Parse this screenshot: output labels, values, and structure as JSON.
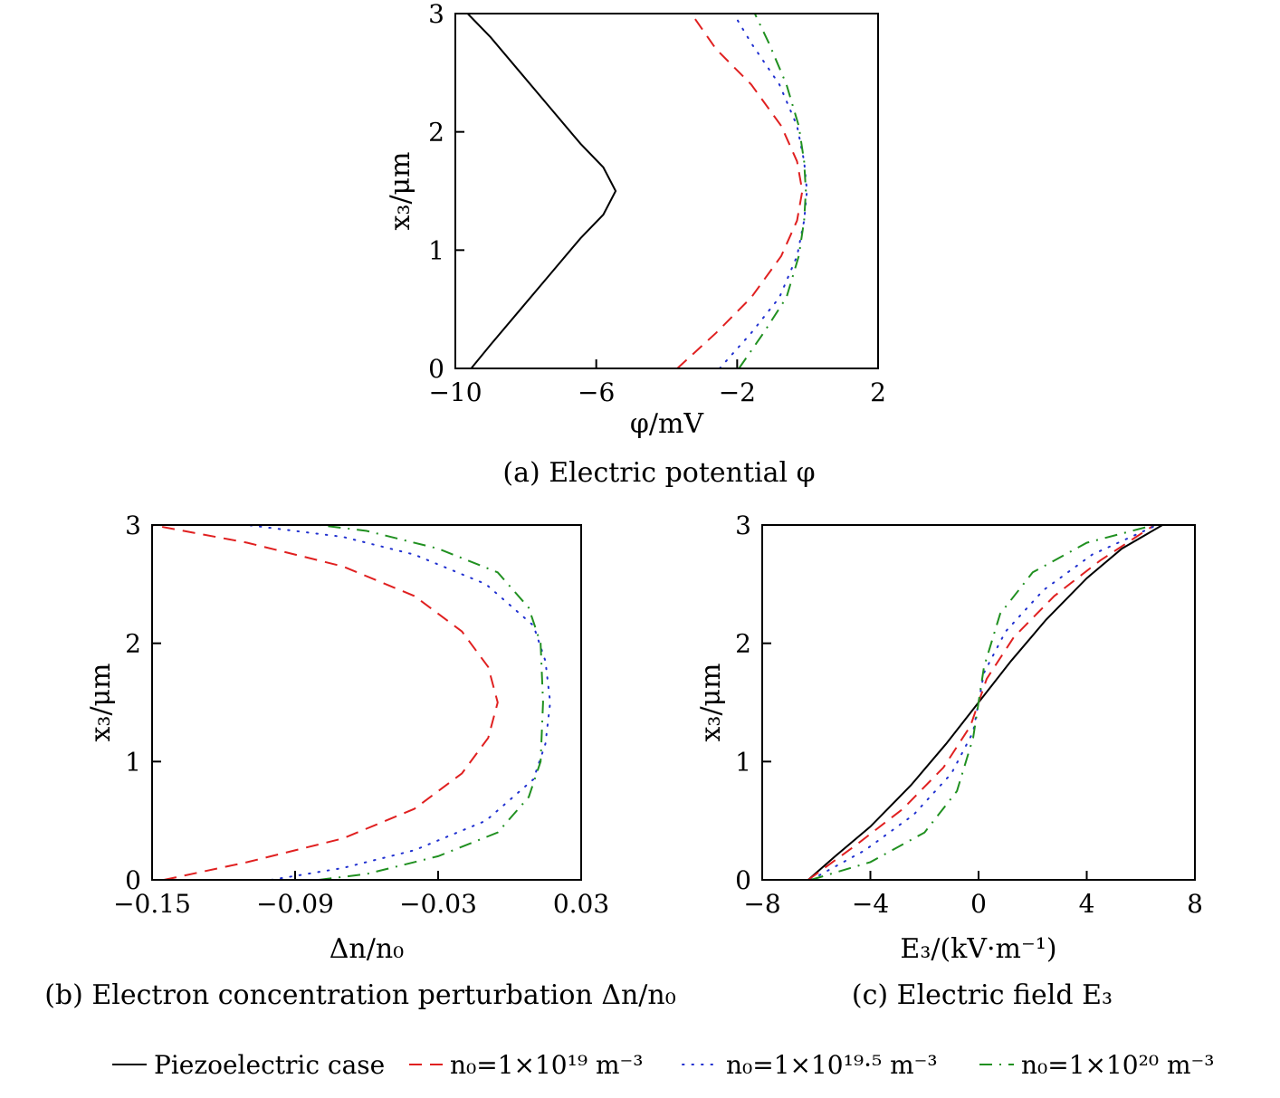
{
  "chart_data": [
    {
      "type": "line",
      "caption": "(a) Electric potential φ",
      "xlabel": "φ/mV",
      "ylabel": "x₃/μm",
      "xlim": [
        -10,
        2
      ],
      "ylim": [
        0,
        3
      ],
      "xticks": [
        -10,
        -6,
        -2,
        2
      ],
      "xtick_labels": [
        "−10",
        "−6",
        "−2",
        "2"
      ],
      "yticks": [
        0,
        1,
        2,
        3
      ],
      "ytick_labels": [
        "0",
        "1",
        "2",
        "3"
      ],
      "series": [
        {
          "name": "Piezoelectric case",
          "color": "#000000",
          "dash": "solid",
          "points": [
            [
              -9.55,
              0
            ],
            [
              -9.0,
              0.2
            ],
            [
              -8.15,
              0.5
            ],
            [
              -7.3,
              0.8
            ],
            [
              -6.45,
              1.1
            ],
            [
              -5.8,
              1.3
            ],
            [
              -5.45,
              1.5
            ],
            [
              -5.8,
              1.7
            ],
            [
              -6.45,
              1.9
            ],
            [
              -7.3,
              2.2
            ],
            [
              -8.15,
              2.5
            ],
            [
              -9.0,
              2.8
            ],
            [
              -9.65,
              3
            ]
          ]
        },
        {
          "name": "n0=1×10^19 m^-3",
          "color": "#e02020",
          "dash": "dashed",
          "points": [
            [
              -3.7,
              0
            ],
            [
              -2.6,
              0.3
            ],
            [
              -1.6,
              0.6
            ],
            [
              -0.75,
              0.95
            ],
            [
              -0.3,
              1.25
            ],
            [
              -0.15,
              1.5
            ],
            [
              -0.3,
              1.75
            ],
            [
              -0.75,
              2.05
            ],
            [
              -1.6,
              2.4
            ],
            [
              -2.6,
              2.7
            ],
            [
              -3.3,
              3
            ]
          ]
        },
        {
          "name": "n0=1×10^19.5 m^-3",
          "color": "#2030d0",
          "dash": "dotted",
          "points": [
            [
              -2.5,
              0
            ],
            [
              -1.6,
              0.3
            ],
            [
              -0.8,
              0.6
            ],
            [
              -0.3,
              0.95
            ],
            [
              -0.1,
              1.25
            ],
            [
              -0.02,
              1.5
            ],
            [
              -0.1,
              1.75
            ],
            [
              -0.3,
              2.05
            ],
            [
              -0.8,
              2.4
            ],
            [
              -1.6,
              2.75
            ],
            [
              -2.1,
              3
            ]
          ]
        },
        {
          "name": "n0=1×10^20 m^-3",
          "color": "#209020",
          "dash": "dashdot",
          "points": [
            [
              -1.95,
              0
            ],
            [
              -1.25,
              0.3
            ],
            [
              -0.6,
              0.6
            ],
            [
              -0.25,
              0.95
            ],
            [
              -0.1,
              1.25
            ],
            [
              -0.05,
              1.5
            ],
            [
              -0.1,
              1.75
            ],
            [
              -0.25,
              2.05
            ],
            [
              -0.6,
              2.4
            ],
            [
              -1.1,
              2.75
            ],
            [
              -1.5,
              3
            ]
          ]
        }
      ]
    },
    {
      "type": "line",
      "caption": "(b) Electron concentration perturbation Δn/n₀",
      "xlabel": "Δn/n₀",
      "ylabel": "x₃/μm",
      "xlim": [
        -0.15,
        0.03
      ],
      "ylim": [
        0,
        3
      ],
      "xticks": [
        -0.15,
        -0.09,
        -0.03,
        0.03
      ],
      "xtick_labels": [
        "−0.15",
        "−0.09",
        "−0.03",
        "0.03"
      ],
      "yticks": [
        0,
        1,
        2,
        3
      ],
      "ytick_labels": [
        "0",
        "1",
        "2",
        "3"
      ],
      "series": [
        {
          "name": "n0=1×10^19 m^-3",
          "color": "#e02020",
          "dash": "dashed",
          "points": [
            [
              -0.145,
              0
            ],
            [
              -0.11,
              0.15
            ],
            [
              -0.07,
              0.35
            ],
            [
              -0.04,
              0.6
            ],
            [
              -0.02,
              0.9
            ],
            [
              -0.009,
              1.2
            ],
            [
              -0.005,
              1.5
            ],
            [
              -0.009,
              1.8
            ],
            [
              -0.02,
              2.1
            ],
            [
              -0.04,
              2.4
            ],
            [
              -0.07,
              2.65
            ],
            [
              -0.11,
              2.85
            ],
            [
              -0.15,
              3
            ]
          ]
        },
        {
          "name": "n0=1×10^19.5 m^-3",
          "color": "#2030d0",
          "dash": "dotted",
          "points": [
            [
              -0.1,
              0
            ],
            [
              -0.07,
              0.1
            ],
            [
              -0.04,
              0.25
            ],
            [
              -0.01,
              0.5
            ],
            [
              0.01,
              0.85
            ],
            [
              0.015,
              1.15
            ],
            [
              0.017,
              1.5
            ],
            [
              0.015,
              1.85
            ],
            [
              0.01,
              2.15
            ],
            [
              -0.01,
              2.5
            ],
            [
              -0.04,
              2.75
            ],
            [
              -0.07,
              2.9
            ],
            [
              -0.11,
              3
            ]
          ]
        },
        {
          "name": "n0=1×10^20 m^-3",
          "color": "#209020",
          "dash": "dashdot",
          "points": [
            [
              -0.08,
              0
            ],
            [
              -0.06,
              0.05
            ],
            [
              -0.03,
              0.2
            ],
            [
              -0.005,
              0.4
            ],
            [
              0.008,
              0.7
            ],
            [
              0.013,
              1.0
            ],
            [
              0.014,
              1.5
            ],
            [
              0.013,
              2.0
            ],
            [
              0.008,
              2.3
            ],
            [
              -0.005,
              2.6
            ],
            [
              -0.03,
              2.8
            ],
            [
              -0.06,
              2.95
            ],
            [
              -0.08,
              3
            ]
          ]
        }
      ]
    },
    {
      "type": "line",
      "caption": "(c) Electric field E₃",
      "xlabel": "E₃/(kV·m⁻¹)",
      "ylabel": "x₃/μm",
      "xlim": [
        -8,
        8
      ],
      "ylim": [
        0,
        3
      ],
      "xticks": [
        -8,
        -4,
        0,
        4,
        8
      ],
      "xtick_labels": [
        "−8",
        "−4",
        "0",
        "4",
        "8"
      ],
      "yticks": [
        0,
        1,
        2,
        3
      ],
      "ytick_labels": [
        "0",
        "1",
        "2",
        "3"
      ],
      "series": [
        {
          "name": "Piezoelectric case",
          "color": "#000000",
          "dash": "solid",
          "points": [
            [
              -6.3,
              0
            ],
            [
              -5.3,
              0.2
            ],
            [
              -4.0,
              0.45
            ],
            [
              -2.5,
              0.8
            ],
            [
              -1.2,
              1.15
            ],
            [
              0,
              1.5
            ],
            [
              1.2,
              1.85
            ],
            [
              2.5,
              2.2
            ],
            [
              4.0,
              2.55
            ],
            [
              5.3,
              2.8
            ],
            [
              6.8,
              3
            ]
          ]
        },
        {
          "name": "n0=1×10^19 m^-3",
          "color": "#e02020",
          "dash": "dashed",
          "points": [
            [
              -6.3,
              0
            ],
            [
              -4.5,
              0.3
            ],
            [
              -2.8,
              0.6
            ],
            [
              -1.3,
              0.95
            ],
            [
              -0.3,
              1.3
            ],
            [
              0,
              1.5
            ],
            [
              0.3,
              1.7
            ],
            [
              1.3,
              2.05
            ],
            [
              2.8,
              2.4
            ],
            [
              4.5,
              2.7
            ],
            [
              6.5,
              3
            ]
          ]
        },
        {
          "name": "n0=1×10^19.5 m^-3",
          "color": "#2030d0",
          "dash": "dotted",
          "points": [
            [
              -6.2,
              0
            ],
            [
              -4.2,
              0.25
            ],
            [
              -2.4,
              0.55
            ],
            [
              -1.0,
              0.9
            ],
            [
              -0.2,
              1.25
            ],
            [
              0,
              1.5
            ],
            [
              0.2,
              1.75
            ],
            [
              1.0,
              2.1
            ],
            [
              2.4,
              2.45
            ],
            [
              4.2,
              2.75
            ],
            [
              6.6,
              3
            ]
          ]
        },
        {
          "name": "n0=1×10^20 m^-3",
          "color": "#209020",
          "dash": "dashdot",
          "points": [
            [
              -6.2,
              0
            ],
            [
              -4.0,
              0.15
            ],
            [
              -2.0,
              0.4
            ],
            [
              -0.8,
              0.75
            ],
            [
              -0.2,
              1.2
            ],
            [
              0,
              1.5
            ],
            [
              0.2,
              1.8
            ],
            [
              0.8,
              2.25
            ],
            [
              2.0,
              2.6
            ],
            [
              4.0,
              2.85
            ],
            [
              6.5,
              3
            ]
          ]
        }
      ]
    }
  ],
  "legend": {
    "placement": "bottom",
    "items": [
      {
        "label": "Piezoelectric case",
        "color": "#000000",
        "dash": "solid"
      },
      {
        "label": "n₀=1×10¹⁹ m⁻³",
        "color": "#e02020",
        "dash": "dashed"
      },
      {
        "label": "n₀=1×10¹⁹·⁵ m⁻³",
        "color": "#2030d0",
        "dash": "dotted"
      },
      {
        "label": "n₀=1×10²⁰ m⁻³",
        "color": "#209020",
        "dash": "dashdot"
      }
    ]
  }
}
